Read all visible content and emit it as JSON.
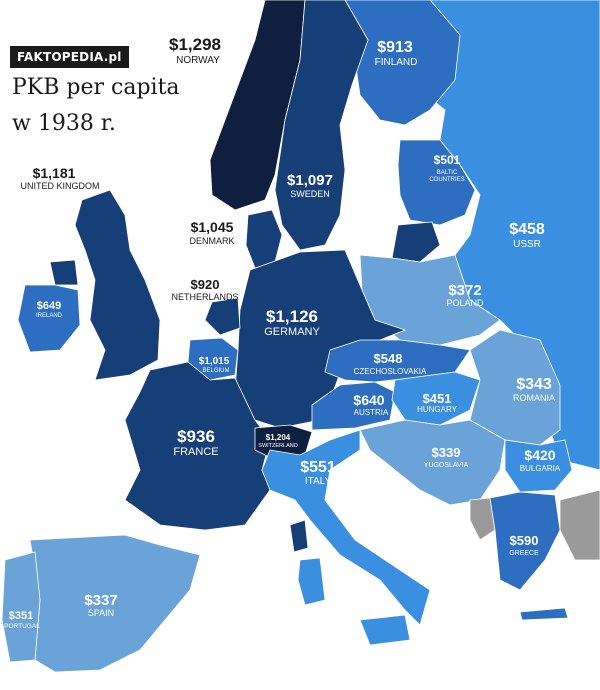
{
  "brand": "FAKTOPEDIA.pl",
  "title": {
    "line1": "PKB per capita",
    "line2": "w 1938 r."
  },
  "colors": {
    "tier_darkest": "#0f1f40",
    "tier_dark": "#163f78",
    "tier_mid": "#2e6ec0",
    "tier_bright": "#3b8fe0",
    "tier_light": "#6aa3d8",
    "no_data": "#9a9a9a",
    "sea": "#ffffff"
  },
  "countries": {
    "norway": {
      "value": "$1,298",
      "name": "NORWAY"
    },
    "finland": {
      "value": "$913",
      "name": "FINLAND"
    },
    "sweden": {
      "value": "$1,097",
      "name": "SWEDEN"
    },
    "baltic": {
      "value": "$501",
      "name1": "BALTIC",
      "name2": "COUNTRIES"
    },
    "uk": {
      "value": "$1,181",
      "name": "UNITED KINGDOM"
    },
    "denmark": {
      "value": "$1,045",
      "name": "DENMARK"
    },
    "ussr": {
      "value": "$458",
      "name": "USSR"
    },
    "ireland": {
      "value": "$649",
      "name": "IRELAND"
    },
    "netherlands": {
      "value": "$920",
      "name": "NETHERLANDS"
    },
    "poland": {
      "value": "$372",
      "name": "POLAND"
    },
    "germany": {
      "value": "$1,126",
      "name": "GERMANY"
    },
    "belgium": {
      "value": "$1,015",
      "name": "BELGIUM"
    },
    "czechoslovakia": {
      "value": "$548",
      "name": "CZECHOSLOVAKIA"
    },
    "austria": {
      "value": "$640",
      "name": "AUSTRIA"
    },
    "hungary": {
      "value": "$451",
      "name": "HUNGARY"
    },
    "romania": {
      "value": "$343",
      "name": "ROMANIA"
    },
    "france": {
      "value": "$936",
      "name": "FRANCE"
    },
    "switzerland": {
      "value": "$1,204",
      "name": "SWITZERLAND"
    },
    "italy": {
      "value": "$551",
      "name": "ITALY"
    },
    "yugoslavia": {
      "value": "$339",
      "name": "YUGOSLAVIA"
    },
    "bulgaria": {
      "value": "$420",
      "name": "BULGARIA"
    },
    "greece": {
      "value": "$590",
      "name": "GREECE"
    },
    "spain": {
      "value": "$337",
      "name": "SPAIN"
    },
    "portugal": {
      "value": "$351",
      "name": "PORTUGAL"
    }
  }
}
